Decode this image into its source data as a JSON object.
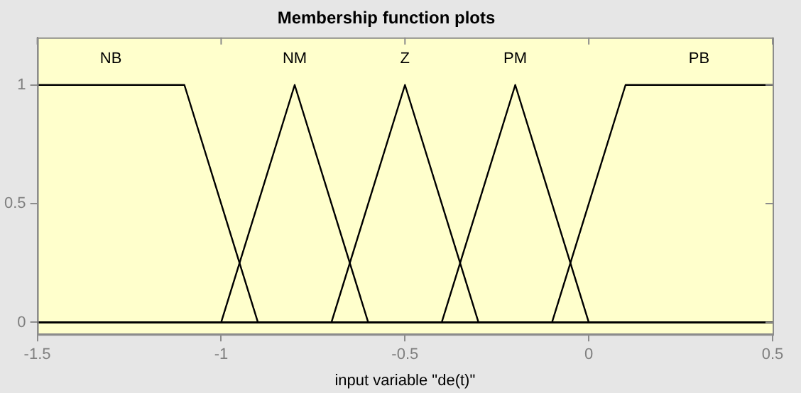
{
  "chart_data": {
    "type": "line",
    "title": "Membership function plots",
    "xlabel": "input variable \"de(t)\"",
    "xlim": [
      -1.5,
      0.5
    ],
    "xticks": [
      -1.5,
      -1,
      -0.5,
      0,
      0.5
    ],
    "ylim": [
      -0.05,
      1.2
    ],
    "yticks": [
      0,
      0.5,
      1
    ],
    "grid": false,
    "legend": false,
    "marker": "none",
    "line_style": "solid",
    "series": [
      {
        "name": "NB",
        "color": "#000000",
        "x": [
          -1.5,
          -1.1,
          -0.9,
          0.5
        ],
        "values": [
          1,
          1,
          0,
          0
        ]
      },
      {
        "name": "NM",
        "color": "#000000",
        "x": [
          -1.5,
          -1,
          -0.8,
          -0.6,
          0.5
        ],
        "values": [
          0,
          0,
          1,
          0,
          0
        ]
      },
      {
        "name": "Z",
        "color": "#000000",
        "x": [
          -1.5,
          -0.7,
          -0.5,
          -0.3,
          0.5
        ],
        "values": [
          0,
          0,
          1,
          0,
          0
        ]
      },
      {
        "name": "PM",
        "color": "#000000",
        "x": [
          -1.5,
          -0.4,
          -0.2,
          0,
          0.5
        ],
        "values": [
          0,
          0,
          1,
          0,
          0
        ]
      },
      {
        "name": "PB",
        "color": "#000000",
        "x": [
          -1.5,
          -0.1,
          0.1,
          0.5
        ],
        "values": [
          0,
          0,
          1,
          1
        ]
      }
    ]
  }
}
